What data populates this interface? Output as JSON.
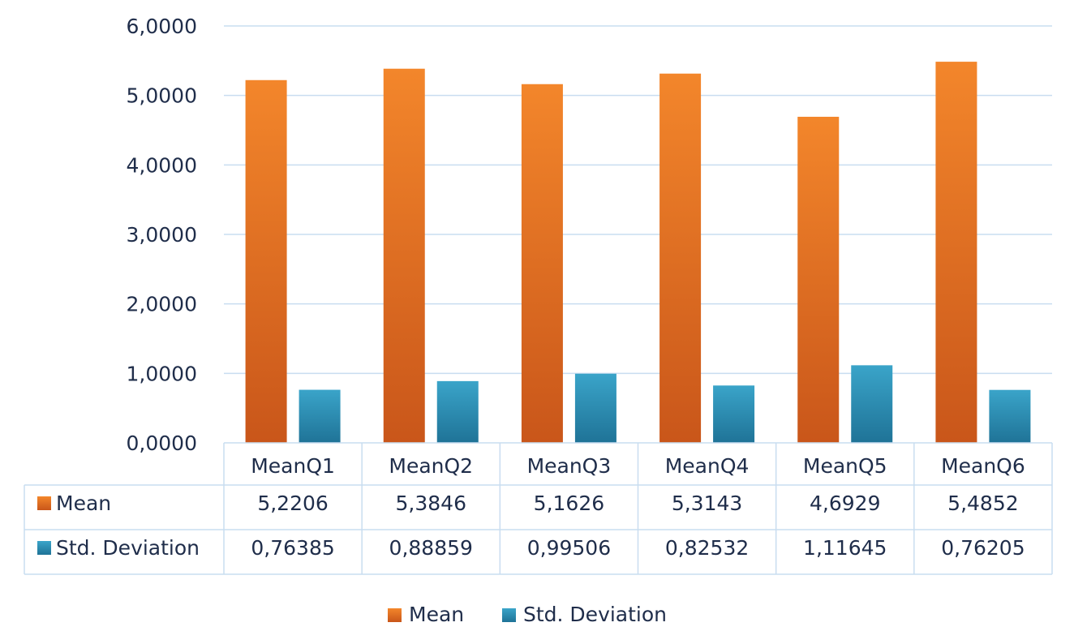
{
  "chart_data": {
    "type": "bar",
    "title": "",
    "xlabel": "",
    "ylabel": "",
    "ylim": [
      0,
      6
    ],
    "y_ticks": [
      "0,0000",
      "1,0000",
      "2,0000",
      "3,0000",
      "4,0000",
      "5,0000",
      "6,0000"
    ],
    "y_tick_values": [
      0,
      1,
      2,
      3,
      4,
      5,
      6
    ],
    "grid": true,
    "legend_position": "bottom",
    "categories": [
      "MeanQ1",
      "MeanQ2",
      "MeanQ3",
      "MeanQ4",
      "MeanQ5",
      "MeanQ6"
    ],
    "series": [
      {
        "name": "Mean",
        "color": "#e8701f",
        "values": [
          5.2206,
          5.3846,
          5.1626,
          5.3143,
          4.6929,
          5.4852
        ],
        "value_labels": [
          "5,2206",
          "5,3846",
          "5,1626",
          "5,3143",
          "4,6929",
          "5,4852"
        ]
      },
      {
        "name": "Std. Deviation",
        "color": "#2a8fb5",
        "values": [
          0.76385,
          0.88859,
          0.99506,
          0.82532,
          1.11645,
          0.76205
        ],
        "value_labels": [
          "0,76385",
          "0,88859",
          "0,99506",
          "0,82532",
          "1,11645",
          "0,76205"
        ]
      }
    ]
  }
}
